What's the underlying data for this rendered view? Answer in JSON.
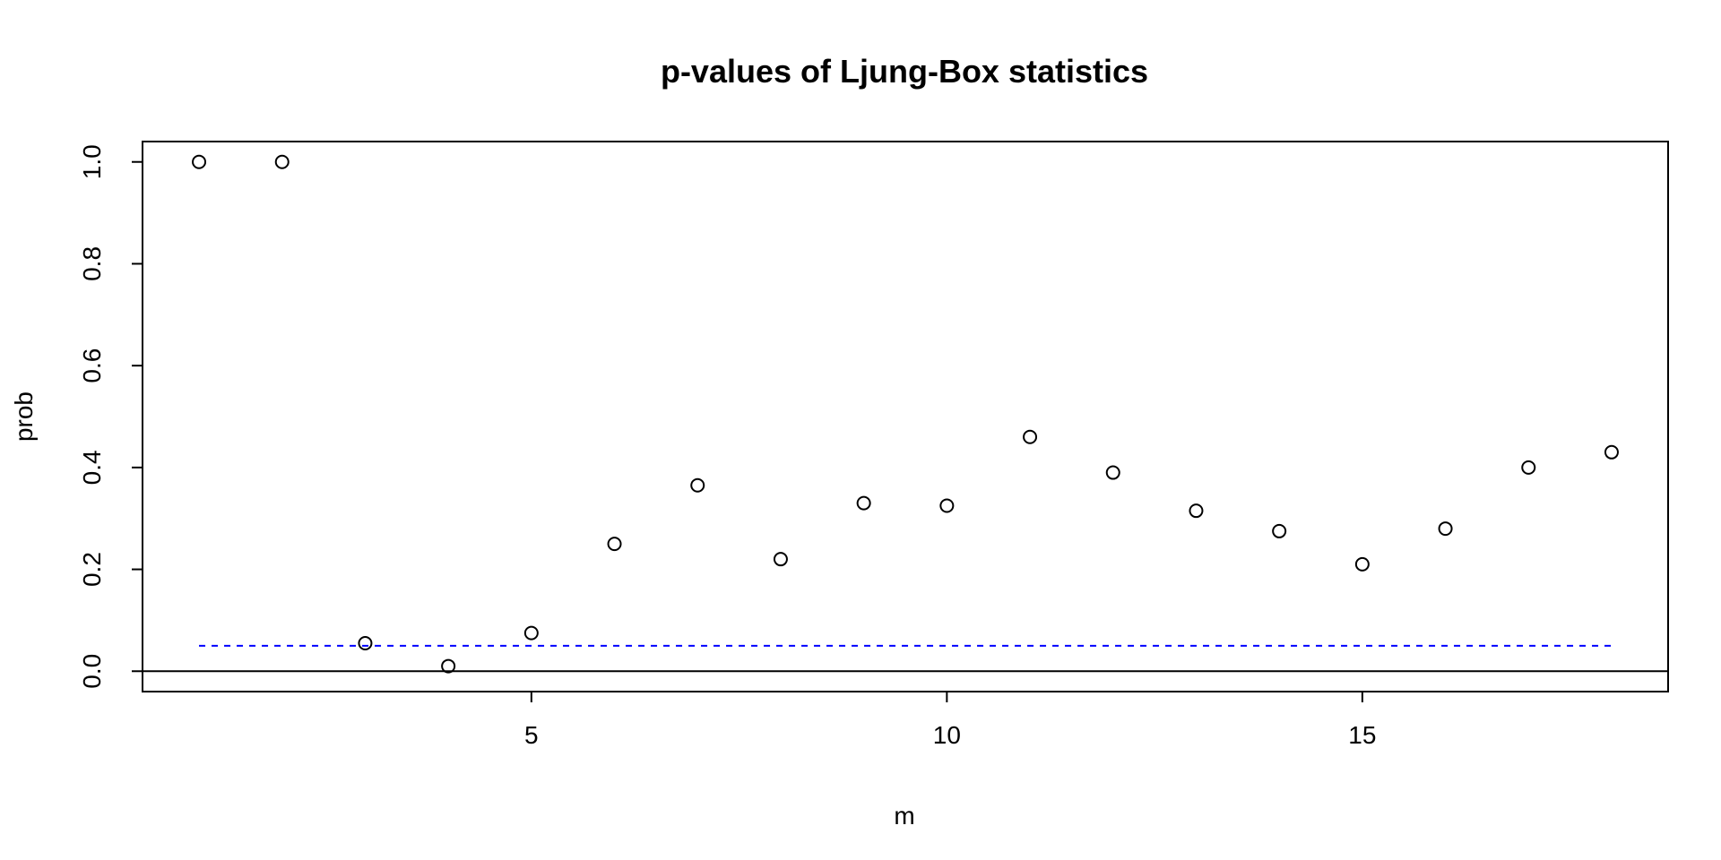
{
  "chart_data": {
    "type": "scatter",
    "title": "p-values of Ljung-Box statistics",
    "xlabel": "m",
    "ylabel": "prob",
    "x": [
      1,
      2,
      3,
      4,
      5,
      6,
      7,
      8,
      9,
      10,
      11,
      12,
      13,
      14,
      15,
      16,
      17,
      18
    ],
    "y": [
      1.0,
      1.0,
      0.055,
      0.01,
      0.075,
      0.25,
      0.365,
      0.22,
      0.33,
      0.325,
      0.46,
      0.39,
      0.315,
      0.275,
      0.21,
      0.28,
      0.4,
      0.43
    ],
    "xlim": [
      0.32,
      18.68
    ],
    "ylim": [
      -0.04,
      1.04
    ],
    "xticks": [
      5,
      10,
      15
    ],
    "xtick_labels": [
      "5",
      "10",
      "15"
    ],
    "yticks": [
      0.0,
      0.2,
      0.4,
      0.6,
      0.8,
      1.0
    ],
    "ytick_labels": [
      "0.0",
      "0.2",
      "0.4",
      "0.6",
      "0.8",
      "1.0"
    ],
    "reference_lines": [
      {
        "y": 0.05,
        "style": "dashed",
        "color": "#0000ff"
      },
      {
        "y": 0.0,
        "style": "solid",
        "color": "#000000"
      }
    ],
    "grid": false,
    "point_style": "open-circle",
    "point_color": "#000000"
  }
}
